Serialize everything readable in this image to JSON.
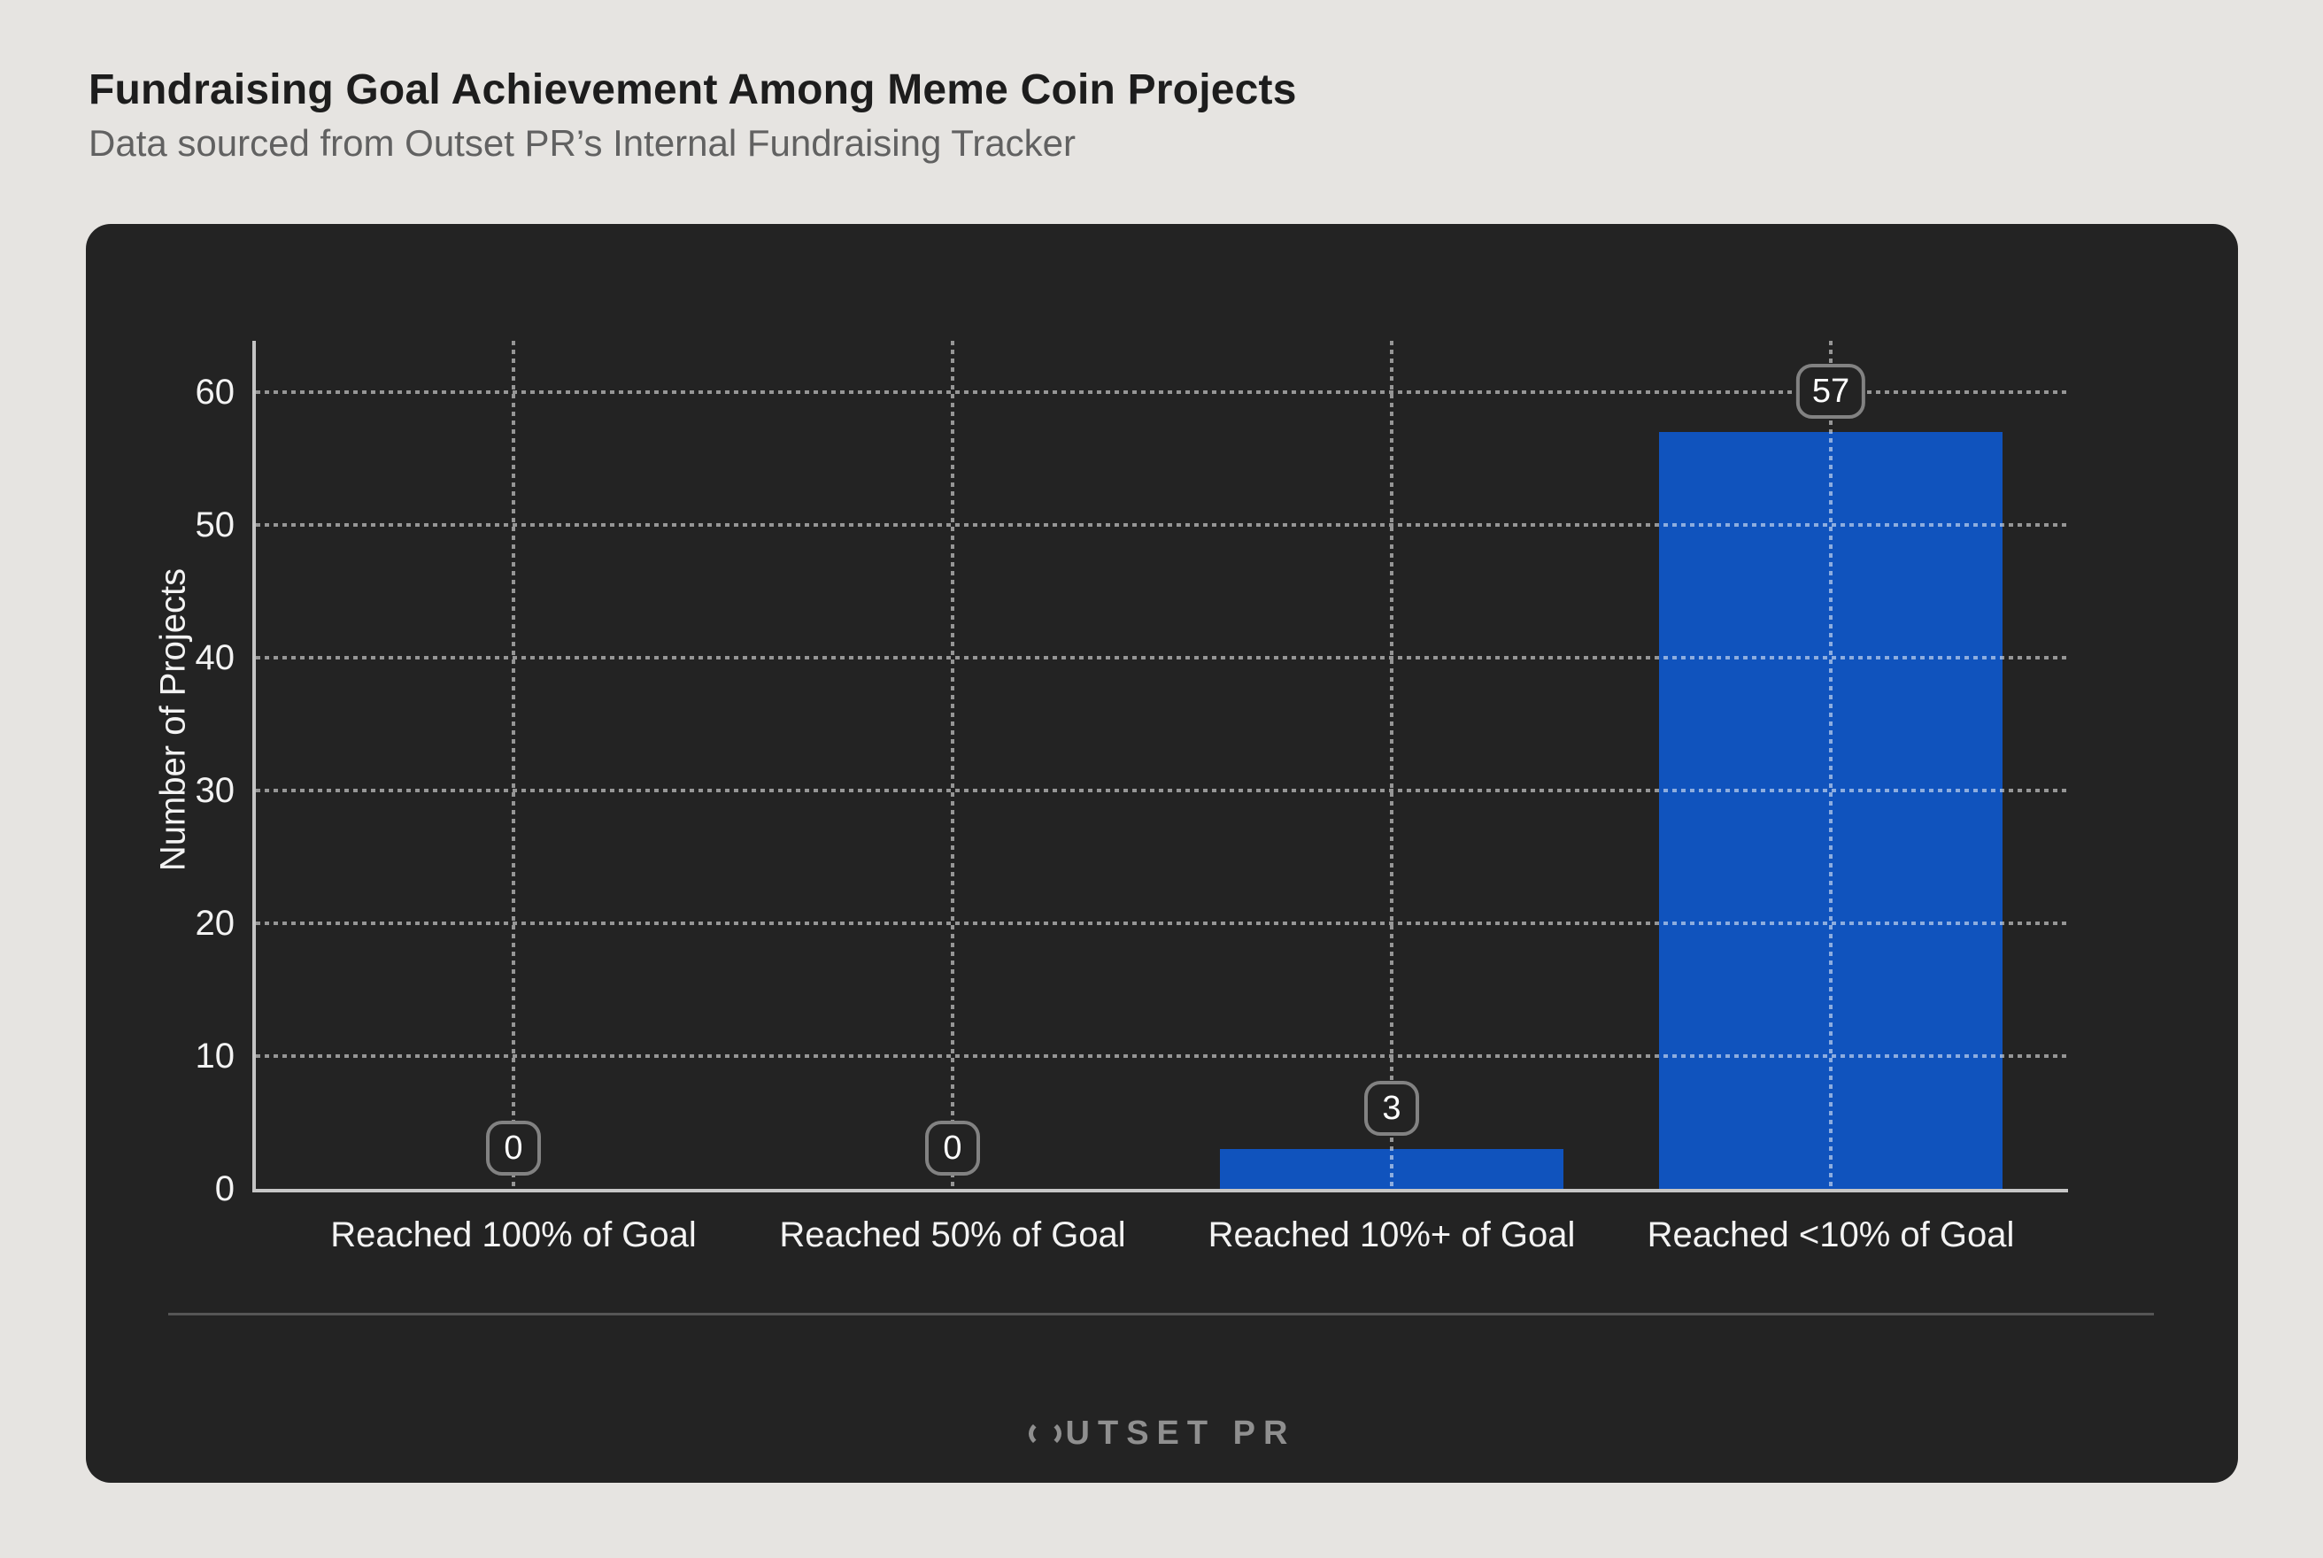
{
  "header": {
    "title": "Fundraising Goal Achievement Among Meme Coin Projects",
    "subtitle": "Data sourced from Outset PR’s Internal Fundraising Tracker"
  },
  "chart_data": {
    "type": "bar",
    "title": "Fundraising Goal Achievement Among Meme Coin Projects",
    "categories": [
      "Reached 100% of Goal",
      "Reached 50% of Goal",
      "Reached 10%+ of Goal",
      "Reached <10% of Goal"
    ],
    "values": [
      0,
      0,
      3,
      57
    ],
    "value_labels": [
      "0",
      "0",
      "3",
      "57"
    ],
    "xlabel": "",
    "ylabel": "Number of Projects",
    "yticks": [
      0,
      10,
      20,
      30,
      40,
      50,
      60
    ],
    "ylim": [
      0,
      64
    ],
    "grid": "dotted horizontal and vertical gridlines",
    "legend_position": "none"
  },
  "colors": {
    "accent_bar_blue": "#1053bd",
    "card_background": "#232323",
    "page_background": "#e6e4e1",
    "grid_dot": "rgba(255,255,255,0.52)",
    "axis_line": "#c3c3c3",
    "badge_border": "#828282",
    "chart_text": "#f3f3f3",
    "subtitle_text": "#616161"
  },
  "footer": {
    "logo_text": "OUTSET PR",
    "logo_text_rest": "UTSET PR"
  }
}
